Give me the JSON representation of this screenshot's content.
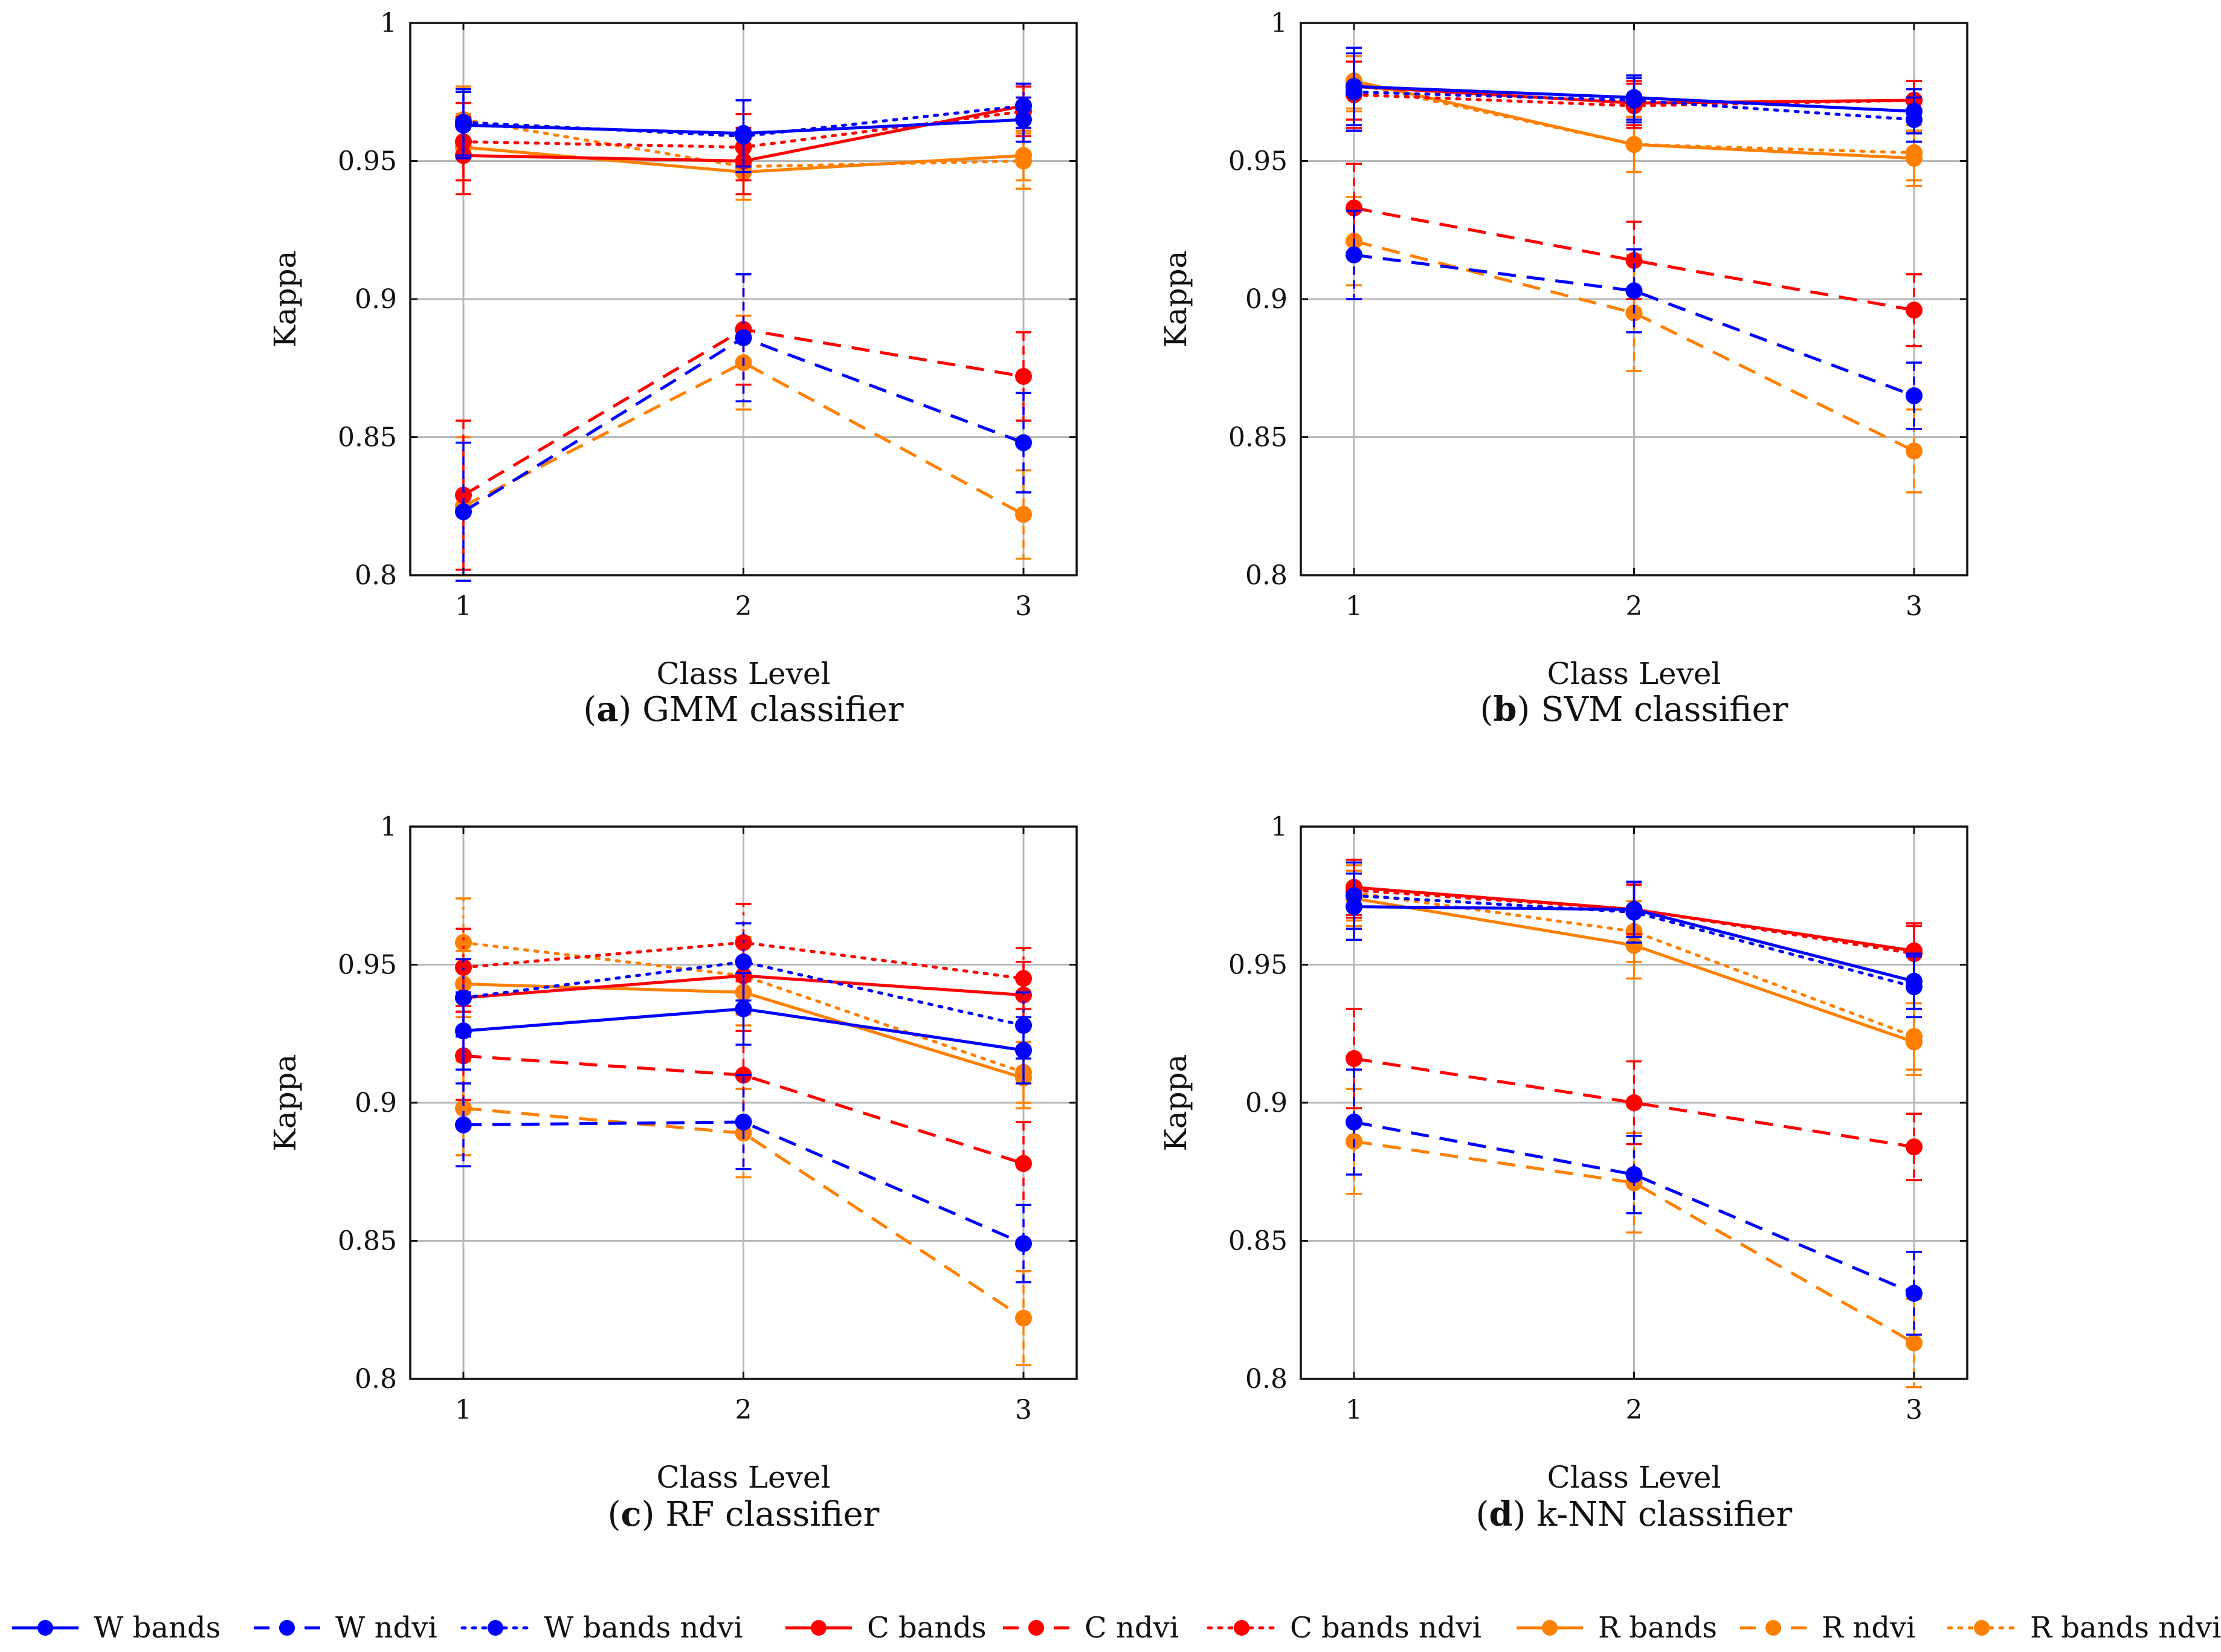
{
  "chart_data": [
    {
      "type": "line",
      "panel_letter": "a",
      "caption": "GMM classifier",
      "xlabel": "Class Level",
      "ylabel": "Kappa",
      "x": [
        1,
        2,
        3
      ],
      "xticks": [
        "1",
        "2",
        "3"
      ],
      "yticks": [
        "0.8",
        "0.85",
        "0.9",
        "0.95",
        "1"
      ],
      "ylim": [
        0.8,
        1.0
      ],
      "grid": true,
      "series": [
        {
          "name": "W bands",
          "values": [
            0.963,
            0.96,
            0.965
          ],
          "err": [
            0.012,
            0.012,
            0.008
          ]
        },
        {
          "name": "W ndvi",
          "values": [
            0.823,
            0.886,
            0.848
          ],
          "err": [
            0.025,
            0.023,
            0.018
          ]
        },
        {
          "name": "W bands ndvi",
          "values": [
            0.964,
            0.959,
            0.97
          ],
          "err": [
            0.012,
            0.013,
            0.008
          ]
        },
        {
          "name": "C bands",
          "values": [
            0.952,
            0.95,
            0.97
          ],
          "err": [
            0.014,
            0.012,
            0.008
          ]
        },
        {
          "name": "C ndvi",
          "values": [
            0.829,
            0.889,
            0.872
          ],
          "err": [
            0.027,
            0.02,
            0.016
          ]
        },
        {
          "name": "C bands ndvi",
          "values": [
            0.957,
            0.955,
            0.968
          ],
          "err": [
            0.014,
            0.012,
            0.009
          ]
        },
        {
          "name": "R bands",
          "values": [
            0.955,
            0.946,
            0.952
          ],
          "err": [
            0.012,
            0.01,
            0.009
          ]
        },
        {
          "name": "R ndvi",
          "values": [
            0.825,
            0.877,
            0.822
          ],
          "err": [
            0.025,
            0.017,
            0.016
          ]
        },
        {
          "name": "R bands ndvi",
          "values": [
            0.965,
            0.948,
            0.95
          ],
          "err": [
            0.012,
            0.01,
            0.01
          ]
        }
      ]
    },
    {
      "type": "line",
      "panel_letter": "b",
      "caption": "SVM classifier",
      "xlabel": "Class Level",
      "ylabel": "Kappa",
      "x": [
        1,
        2,
        3
      ],
      "xticks": [
        "1",
        "2",
        "3"
      ],
      "yticks": [
        "0.8",
        "0.85",
        "0.9",
        "0.95",
        "1"
      ],
      "ylim": [
        0.8,
        1.0
      ],
      "grid": true,
      "series": [
        {
          "name": "W bands",
          "values": [
            0.977,
            0.973,
            0.968
          ],
          "err": [
            0.014,
            0.008,
            0.008
          ]
        },
        {
          "name": "W ndvi",
          "values": [
            0.916,
            0.903,
            0.865
          ],
          "err": [
            0.016,
            0.015,
            0.012
          ]
        },
        {
          "name": "W bands ndvi",
          "values": [
            0.975,
            0.972,
            0.965
          ],
          "err": [
            0.014,
            0.008,
            0.008
          ]
        },
        {
          "name": "C bands",
          "values": [
            0.977,
            0.971,
            0.972
          ],
          "err": [
            0.012,
            0.008,
            0.007
          ]
        },
        {
          "name": "C ndvi",
          "values": [
            0.933,
            0.914,
            0.896
          ],
          "err": [
            0.016,
            0.014,
            0.013
          ]
        },
        {
          "name": "C bands ndvi",
          "values": [
            0.974,
            0.97,
            0.972
          ],
          "err": [
            0.012,
            0.008,
            0.007
          ]
        },
        {
          "name": "R bands",
          "values": [
            0.979,
            0.956,
            0.951
          ],
          "err": [
            0.01,
            0.01,
            0.01
          ]
        },
        {
          "name": "R ndvi",
          "values": [
            0.921,
            0.895,
            0.845
          ],
          "err": [
            0.016,
            0.021,
            0.015
          ]
        },
        {
          "name": "R bands ndvi",
          "values": [
            0.978,
            0.956,
            0.953
          ],
          "err": [
            0.01,
            0.01,
            0.01
          ]
        }
      ]
    },
    {
      "type": "line",
      "panel_letter": "c",
      "caption": "RF classifier",
      "xlabel": "Class Level",
      "ylabel": "Kappa",
      "x": [
        1,
        2,
        3
      ],
      "xticks": [
        "1",
        "2",
        "3"
      ],
      "yticks": [
        "0.8",
        "0.85",
        "0.9",
        "0.95",
        "1"
      ],
      "ylim": [
        0.8,
        1.0
      ],
      "grid": true,
      "series": [
        {
          "name": "W bands",
          "values": [
            0.926,
            0.934,
            0.919
          ],
          "err": [
            0.014,
            0.013,
            0.012
          ]
        },
        {
          "name": "W ndvi",
          "values": [
            0.892,
            0.893,
            0.849
          ],
          "err": [
            0.015,
            0.017,
            0.014
          ]
        },
        {
          "name": "W bands ndvi",
          "values": [
            0.938,
            0.951,
            0.928
          ],
          "err": [
            0.014,
            0.014,
            0.012
          ]
        },
        {
          "name": "C bands",
          "values": [
            0.938,
            0.946,
            0.939
          ],
          "err": [
            0.014,
            0.013,
            0.012
          ]
        },
        {
          "name": "C ndvi",
          "values": [
            0.917,
            0.91,
            0.878
          ],
          "err": [
            0.016,
            0.016,
            0.015
          ]
        },
        {
          "name": "C bands ndvi",
          "values": [
            0.949,
            0.958,
            0.945
          ],
          "err": [
            0.014,
            0.014,
            0.011
          ]
        },
        {
          "name": "R bands",
          "values": [
            0.943,
            0.94,
            0.909
          ],
          "err": [
            0.012,
            0.012,
            0.011
          ]
        },
        {
          "name": "R ndvi",
          "values": [
            0.898,
            0.889,
            0.822
          ],
          "err": [
            0.017,
            0.016,
            0.017
          ]
        },
        {
          "name": "R bands ndvi",
          "values": [
            0.958,
            0.946,
            0.911
          ],
          "err": [
            0.016,
            0.014,
            0.011
          ]
        }
      ]
    },
    {
      "type": "line",
      "panel_letter": "d",
      "caption": "k-NN classifier",
      "xlabel": "Class Level",
      "ylabel": "Kappa",
      "x": [
        1,
        2,
        3
      ],
      "xticks": [
        "1",
        "2",
        "3"
      ],
      "yticks": [
        "0.8",
        "0.85",
        "0.9",
        "0.95",
        "1"
      ],
      "ylim": [
        0.8,
        1.0
      ],
      "grid": true,
      "series": [
        {
          "name": "W bands",
          "values": [
            0.971,
            0.97,
            0.944
          ],
          "err": [
            0.012,
            0.01,
            0.01
          ]
        },
        {
          "name": "W ndvi",
          "values": [
            0.893,
            0.874,
            0.831
          ],
          "err": [
            0.019,
            0.014,
            0.015
          ]
        },
        {
          "name": "W bands ndvi",
          "values": [
            0.975,
            0.969,
            0.942
          ],
          "err": [
            0.012,
            0.011,
            0.011
          ]
        },
        {
          "name": "C bands",
          "values": [
            0.978,
            0.97,
            0.955
          ],
          "err": [
            0.01,
            0.009,
            0.01
          ]
        },
        {
          "name": "C ndvi",
          "values": [
            0.916,
            0.9,
            0.884
          ],
          "err": [
            0.018,
            0.015,
            0.012
          ]
        },
        {
          "name": "C bands ndvi",
          "values": [
            0.977,
            0.97,
            0.954
          ],
          "err": [
            0.01,
            0.009,
            0.01
          ]
        },
        {
          "name": "R bands",
          "values": [
            0.974,
            0.957,
            0.922
          ],
          "err": [
            0.01,
            0.012,
            0.012
          ]
        },
        {
          "name": "R ndvi",
          "values": [
            0.886,
            0.871,
            0.813
          ],
          "err": [
            0.019,
            0.018,
            0.016
          ]
        },
        {
          "name": "R bands ndvi",
          "values": [
            0.976,
            0.962,
            0.924
          ],
          "err": [
            0.01,
            0.011,
            0.012
          ]
        }
      ]
    }
  ],
  "legend": {
    "placement": "bottom",
    "items": [
      {
        "name": "W bands",
        "color": "#0000ff",
        "style": "solid"
      },
      {
        "name": "W ndvi",
        "color": "#0000ff",
        "style": "dashed"
      },
      {
        "name": "W bands ndvi",
        "color": "#0000ff",
        "style": "dotted"
      },
      {
        "name": "C bands",
        "color": "#ff0000",
        "style": "solid"
      },
      {
        "name": "C ndvi",
        "color": "#ff0000",
        "style": "dashed"
      },
      {
        "name": "C bands ndvi",
        "color": "#ff0000",
        "style": "dotted"
      },
      {
        "name": "R bands",
        "color": "#ff8000",
        "style": "solid"
      },
      {
        "name": "R ndvi",
        "color": "#ff8000",
        "style": "dashed"
      },
      {
        "name": "R bands ndvi",
        "color": "#ff8000",
        "style": "dotted"
      }
    ]
  }
}
